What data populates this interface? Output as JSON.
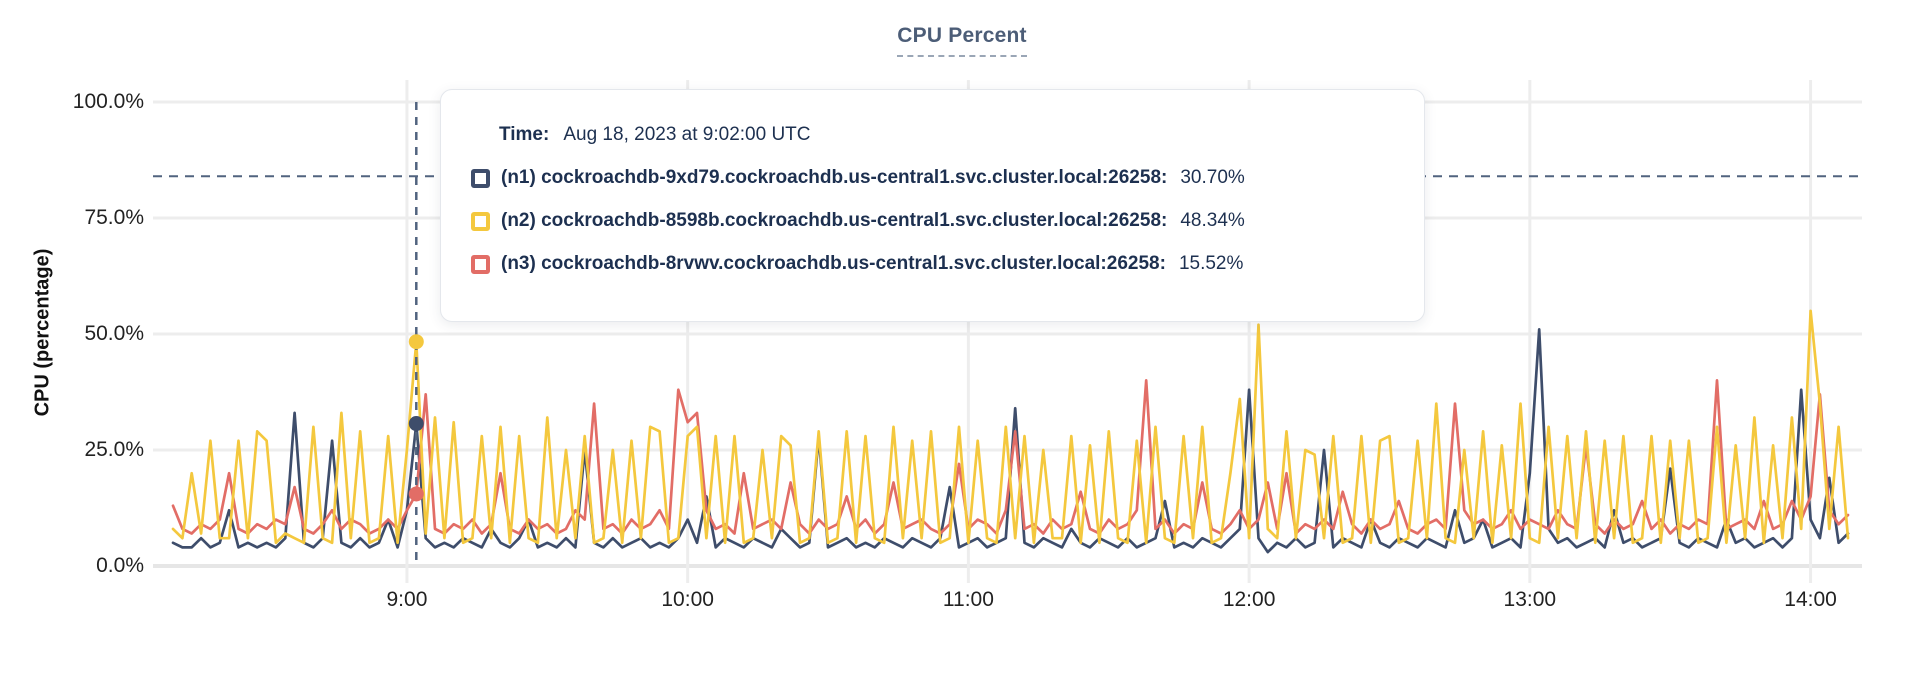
{
  "title": "CPU Percent",
  "y_axis": {
    "label": "CPU (percentage)",
    "ticks": [
      "100.0%",
      "75.0%",
      "50.0%",
      "25.0%",
      "0.0%"
    ]
  },
  "x_axis": {
    "ticks": [
      "9:00",
      "10:00",
      "11:00",
      "12:00",
      "13:00",
      "14:00"
    ]
  },
  "tooltip": {
    "time_label": "Time:",
    "time_value": "Aug 18, 2023 at 9:02:00 UTC",
    "rows": [
      {
        "node": "(n1) cockroachdb-9xd79.cockroachdb.us-central1.svc.cluster.local:26258:",
        "value": "30.70%",
        "color": "#3e4d6b"
      },
      {
        "node": "(n2) cockroachdb-8598b.cockroachdb.us-central1.svc.cluster.local:26258:",
        "value": "48.34%",
        "color": "#f4c83e"
      },
      {
        "node": "(n3) cockroachdb-8rvwv.cockroachdb.us-central1.svc.cluster.local:26258:",
        "value": "15.52%",
        "color": "#e26d66"
      }
    ]
  },
  "colors": {
    "grid": "#ededed",
    "grid_zero": "#e6e6e6",
    "dashed_guides": "#51637f",
    "title": "#4c5d77",
    "tooltip_text": "#1d3050"
  },
  "chart_data": {
    "type": "line",
    "title": "CPU Percent",
    "xlabel": "",
    "ylabel": "CPU (percentage)",
    "ylim": [
      0,
      100
    ],
    "grid": true,
    "y_tick_values": [
      100,
      75,
      50,
      25,
      0
    ],
    "x_tick_minutes": [
      540,
      600,
      660,
      720,
      780,
      840
    ],
    "x_start_minutes": 490,
    "x_step_minutes": 2,
    "threshold_value": 84,
    "hover": {
      "minutes": 542,
      "time_text": "Aug 18, 2023 at 9:02:00 UTC",
      "values": [
        30.7,
        48.34,
        15.52
      ]
    },
    "series": [
      {
        "id": "n1",
        "name": "cockroachdb-9xd79.cockroachdb.us-central1.svc.cluster.local:26258",
        "color": "#3e4d6b",
        "values": [
          5,
          4,
          4,
          6,
          4,
          5,
          12,
          4,
          5,
          4,
          5,
          4,
          6,
          33,
          5,
          4,
          6,
          27,
          5,
          4,
          6,
          4,
          5,
          10,
          4,
          12,
          30.7,
          6,
          4,
          5,
          4,
          6,
          5,
          4,
          8,
          5,
          4,
          6,
          10,
          4,
          5,
          4,
          6,
          4,
          25,
          5,
          4,
          6,
          4,
          5,
          6,
          4,
          5,
          4,
          6,
          10,
          5,
          15,
          4,
          6,
          5,
          4,
          6,
          5,
          4,
          8,
          6,
          4,
          5,
          28,
          4,
          5,
          6,
          4,
          5,
          4,
          6,
          5,
          4,
          6,
          5,
          4,
          6,
          17,
          4,
          5,
          6,
          4,
          5,
          6,
          34,
          5,
          4,
          6,
          5,
          4,
          8,
          5,
          4,
          6,
          5,
          4,
          6,
          4,
          5,
          6,
          14,
          4,
          5,
          4,
          6,
          5,
          4,
          6,
          8,
          38,
          6,
          3,
          5,
          4,
          6,
          4,
          5,
          25,
          4,
          6,
          5,
          4,
          10,
          5,
          4,
          6,
          5,
          4,
          6,
          5,
          4,
          12,
          5,
          6,
          10,
          4,
          5,
          6,
          4,
          20,
          51,
          8,
          5,
          6,
          4,
          5,
          6,
          4,
          12,
          5,
          6,
          4,
          5,
          6,
          21,
          5,
          4,
          6,
          5,
          4,
          10,
          5,
          6,
          4,
          5,
          6,
          4,
          6,
          38,
          10,
          6,
          19,
          5,
          7
        ]
      },
      {
        "id": "n2",
        "name": "cockroachdb-8598b.cockroachdb.us-central1.svc.cluster.local:26258",
        "color": "#f4c83e",
        "values": [
          8,
          6,
          20,
          7,
          27,
          6,
          6,
          27,
          6,
          29,
          27,
          5,
          7,
          6,
          5,
          30,
          6,
          5,
          33,
          6,
          29,
          5,
          6,
          28,
          5,
          25,
          48.34,
          7,
          32,
          6,
          31,
          5,
          6,
          28,
          6,
          30,
          5,
          28,
          6,
          5,
          32,
          6,
          25,
          6,
          28,
          5,
          6,
          25,
          5,
          27,
          6,
          30,
          29,
          5,
          6,
          28,
          30,
          6,
          28,
          5,
          28,
          5,
          6,
          25,
          6,
          28,
          26,
          5,
          6,
          29,
          5,
          6,
          29,
          5,
          28,
          6,
          5,
          30,
          6,
          27,
          6,
          29,
          5,
          6,
          30,
          5,
          27,
          6,
          5,
          30,
          6,
          28,
          5,
          25,
          6,
          6,
          28,
          5,
          26,
          5,
          29,
          6,
          5,
          27,
          5,
          30,
          6,
          5,
          28,
          6,
          30,
          5,
          6,
          20,
          36,
          6,
          52,
          8,
          6,
          29,
          6,
          25,
          24,
          6,
          28,
          5,
          6,
          28,
          5,
          27,
          28,
          5,
          6,
          27,
          6,
          35,
          6,
          5,
          25,
          6,
          29,
          5,
          26,
          6,
          35,
          6,
          5,
          30,
          6,
          28,
          6,
          29,
          5,
          27,
          6,
          28,
          5,
          6,
          28,
          5,
          27,
          6,
          27,
          5,
          6,
          30,
          5,
          26,
          6,
          32,
          5,
          26,
          6,
          32,
          8,
          55,
          35,
          8,
          30,
          6
        ]
      },
      {
        "id": "n3",
        "name": "cockroachdb-8rvwv.cockroachdb.us-central1.svc.cluster.local:26258",
        "color": "#e26d66",
        "values": [
          13,
          8,
          7,
          9,
          8,
          10,
          20,
          8,
          7,
          9,
          8,
          10,
          9,
          17,
          8,
          7,
          9,
          12,
          8,
          10,
          9,
          7,
          8,
          10,
          8,
          12,
          15.52,
          37,
          8,
          7,
          9,
          8,
          10,
          7,
          9,
          20,
          8,
          7,
          10,
          8,
          9,
          7,
          8,
          12,
          10,
          35,
          8,
          9,
          7,
          10,
          8,
          9,
          12,
          8,
          38,
          31,
          33,
          12,
          8,
          9,
          7,
          20,
          8,
          9,
          10,
          8,
          18,
          9,
          7,
          10,
          8,
          9,
          15,
          8,
          10,
          7,
          9,
          18,
          8,
          9,
          10,
          8,
          7,
          9,
          22,
          8,
          10,
          9,
          7,
          12,
          29,
          8,
          9,
          7,
          10,
          8,
          9,
          16,
          8,
          7,
          10,
          8,
          9,
          12,
          40,
          8,
          10,
          7,
          9,
          8,
          18,
          8,
          7,
          9,
          12,
          8,
          10,
          18,
          8,
          20,
          7,
          9,
          8,
          10,
          8,
          16,
          9,
          7,
          10,
          8,
          9,
          14,
          8,
          7,
          9,
          10,
          8,
          35,
          12,
          9,
          10,
          8,
          9,
          12,
          8,
          10,
          9,
          8,
          12,
          9,
          8,
          26,
          9,
          7,
          10,
          8,
          9,
          14,
          8,
          10,
          7,
          9,
          8,
          10,
          9,
          40,
          8,
          9,
          10,
          8,
          14,
          8,
          9,
          14,
          10,
          15,
          37,
          12,
          9,
          11
        ]
      }
    ]
  }
}
